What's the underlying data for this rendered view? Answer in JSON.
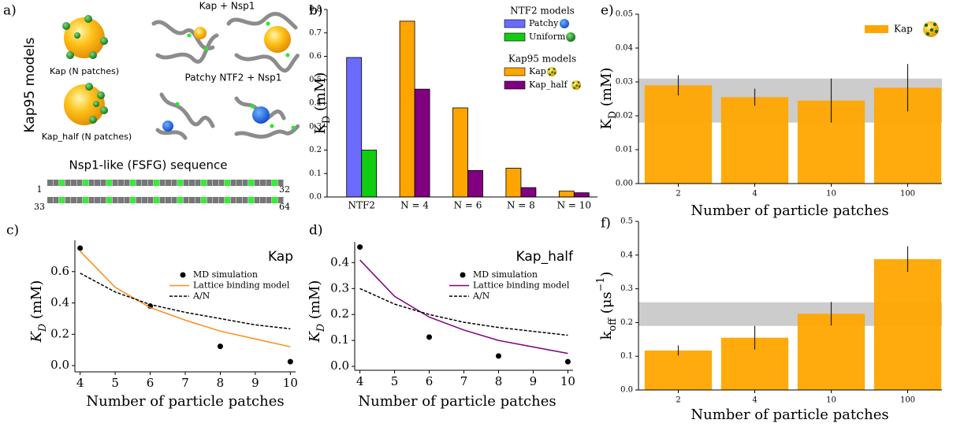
{
  "illustration": {
    "panel": "a)",
    "models_label": "Kap95 models",
    "kap_label": "Kap (N patches)",
    "kap_half_label": "Kap_half (N patches)",
    "kap_nsp1_label": "Kap + Nsp1",
    "ntf2_nsp1_label": "Patchy NTF2 + Nsp1",
    "sequence_title": "Nsp1-like (FSFG) sequence",
    "sequence_ticks": [
      "1",
      "32",
      "33",
      "64"
    ]
  },
  "chart_data": [
    {
      "type": "bar",
      "panel": "b)",
      "y_label": [
        {
          "text": "K"
        },
        {
          "text": "D",
          "sub": true
        },
        {
          "text": " (mM)"
        }
      ],
      "categories": [
        "NTF2",
        "N = 4",
        "N = 6",
        "N = 8",
        "N = 10"
      ],
      "legend_titles": [
        "NTF2 models",
        "Kap95 models"
      ],
      "series": [
        {
          "name": "Patchy",
          "color": "#6b6bff",
          "values": [
            0.595,
            null,
            null,
            null,
            null
          ]
        },
        {
          "name": "Uniform",
          "color": "#11cc11",
          "values": [
            0.2,
            null,
            null,
            null,
            null
          ]
        },
        {
          "name": "Kap",
          "color": "#ffa500",
          "values": [
            null,
            0.75,
            0.38,
            0.123,
            0.025
          ]
        },
        {
          "name": "Kap_half",
          "color": "#800080",
          "values": [
            null,
            0.46,
            0.113,
            0.04,
            0.018
          ]
        }
      ],
      "ylim": [
        0,
        0.8
      ],
      "yticks": [
        {
          "value": 0,
          "label": "0.0"
        },
        0.1,
        0.2,
        0.3,
        0.4,
        0.5,
        0.6,
        0.7,
        0.8
      ]
    },
    {
      "type": "line",
      "panel": "c)",
      "title": "Kap",
      "x_label": "Number of particle patches",
      "y_label": [
        {
          "text": "K",
          "italic": true
        },
        {
          "text": "D",
          "sub": true,
          "italic": true
        },
        {
          "text": " (mM)"
        }
      ],
      "x": [
        4,
        5,
        6,
        7,
        8,
        9,
        10
      ],
      "series": [
        {
          "name": "MD simulation",
          "color": "#000000",
          "style": "marker",
          "values": [
            0.75,
            null,
            0.38,
            null,
            0.123,
            null,
            0.025
          ]
        },
        {
          "name": "Lattice binding model",
          "color": "#ff8c1a",
          "style": "solid",
          "values": [
            0.73,
            0.5,
            0.37,
            0.29,
            0.22,
            0.17,
            0.12
          ]
        },
        {
          "name": "A/N",
          "color": "#000000",
          "style": "dashed",
          "values": [
            0.59,
            0.47,
            0.39,
            0.34,
            0.3,
            0.26,
            0.235
          ]
        }
      ],
      "xlim": [
        3.85,
        10.15
      ],
      "ylim": [
        -0.04,
        0.8
      ],
      "xticks": [
        4,
        5,
        6,
        7,
        8,
        9,
        10
      ],
      "yticks": [
        {
          "value": 0,
          "label": "0.0"
        },
        0.2,
        0.4,
        0.6
      ]
    },
    {
      "type": "line",
      "panel": "d)",
      "title": "Kap_half",
      "x_label": "Number of particle patches",
      "y_label": [
        {
          "text": "K",
          "italic": true
        },
        {
          "text": "D",
          "sub": true,
          "italic": true
        },
        {
          "text": " (mM)"
        }
      ],
      "x": [
        4,
        5,
        6,
        7,
        8,
        9,
        10
      ],
      "series": [
        {
          "name": "MD simulation",
          "color": "#000000",
          "style": "marker",
          "values": [
            0.46,
            null,
            0.113,
            null,
            0.04,
            null,
            0.018
          ]
        },
        {
          "name": "Lattice binding model",
          "color": "#800080",
          "style": "solid",
          "values": [
            0.41,
            0.27,
            0.19,
            0.14,
            0.1,
            0.075,
            0.05
          ]
        },
        {
          "name": "A/N",
          "color": "#000000",
          "style": "dashed",
          "values": [
            0.3,
            0.24,
            0.2,
            0.17,
            0.15,
            0.135,
            0.12
          ]
        }
      ],
      "xlim": [
        3.85,
        10.15
      ],
      "ylim": [
        -0.015,
        0.48
      ],
      "xticks": [
        4,
        5,
        6,
        7,
        8,
        9,
        10
      ],
      "yticks": [
        {
          "value": 0,
          "label": "0.0"
        },
        0.1,
        0.2,
        0.3,
        0.4
      ]
    },
    {
      "type": "errorbar",
      "panel": "e)",
      "legend": "Kap",
      "x_label": "Number of particle patches",
      "y_label": [
        {
          "text": "K"
        },
        {
          "text": "D",
          "sub": true
        },
        {
          "text": " (mM)"
        }
      ],
      "categories": [
        "2",
        "4",
        "10",
        "100"
      ],
      "color": "#ffa500",
      "values": [
        0.029,
        0.0255,
        0.0245,
        0.0283
      ],
      "errors": [
        0.003,
        0.0025,
        0.0065,
        0.007
      ],
      "band": [
        0.018,
        0.031
      ],
      "band_color": "#999999",
      "ylim": [
        0,
        0.05
      ],
      "yticks": [
        {
          "value": 0,
          "label": "0.00"
        },
        0.01,
        0.02,
        0.03,
        0.04,
        0.05
      ]
    },
    {
      "type": "errorbar",
      "panel": "f)",
      "x_label": "Number of particle patches",
      "y_label": [
        {
          "text": "k"
        },
        {
          "text": "off",
          "sub": true
        },
        {
          "text": " (μs"
        },
        {
          "text": "−1",
          "sup": true
        },
        {
          "text": ")"
        }
      ],
      "categories": [
        "2",
        "4",
        "10",
        "100"
      ],
      "color": "#ffa500",
      "values": [
        0.117,
        0.155,
        0.226,
        0.388
      ],
      "errors": [
        0.015,
        0.035,
        0.035,
        0.038
      ],
      "band": [
        0.19,
        0.26
      ],
      "band_color": "#999999",
      "ylim": [
        0,
        0.5
      ],
      "yticks": [
        {
          "value": 0,
          "label": "0.0"
        },
        0.1,
        0.2,
        0.3,
        0.4,
        0.5
      ]
    }
  ]
}
